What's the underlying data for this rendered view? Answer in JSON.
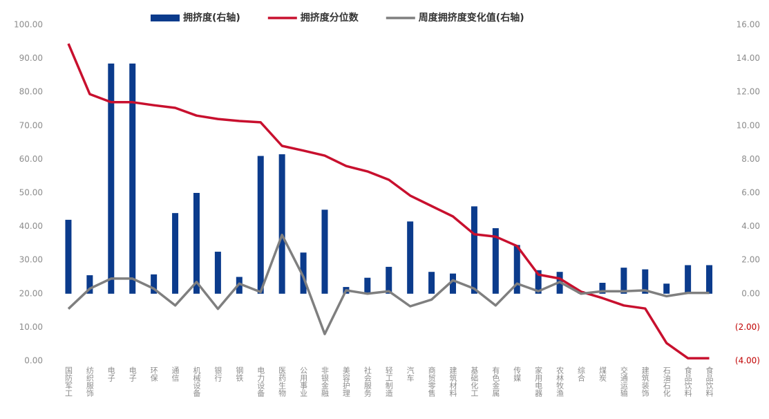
{
  "chart_data": {
    "type": "bar-line",
    "categories": [
      "国防军工",
      "纺织服饰",
      "电子",
      "电子",
      "环保",
      "通信",
      "机械设备",
      "银行",
      "钢铁",
      "电力设备",
      "医药生物",
      "公用事业",
      "非银金融",
      "美容护理",
      "社会服务",
      "轻工制造",
      "汽车",
      "商贸零售",
      "建筑材料",
      "基础化工",
      "有色金属",
      "传媒",
      "家用电器",
      "农林牧渔",
      "综合",
      "煤炭",
      "交通运输",
      "建筑装饰",
      "石油石化",
      "食品饮料",
      "食品饮料"
    ],
    "series": [
      {
        "name": "拥挤度(右轴)",
        "type": "bar",
        "axis": "y2",
        "color": "#0b3b8c",
        "values": [
          4.4,
          1.1,
          13.7,
          13.7,
          1.15,
          4.8,
          6.0,
          2.5,
          1.0,
          8.2,
          8.3,
          2.45,
          5.0,
          0.4,
          0.95,
          1.6,
          4.3,
          1.3,
          1.2,
          5.2,
          3.9,
          2.9,
          1.4,
          1.3,
          0.15,
          0.65,
          1.55,
          1.45,
          0.6,
          1.7,
          1.7
        ]
      },
      {
        "name": "拥挤度分位数",
        "type": "line",
        "color": "#c8102e",
        "values": [
          94.4,
          79.4,
          77.0,
          77.0,
          76.1,
          75.3,
          73.0,
          72.0,
          71.4,
          71.0,
          64.0,
          62.6,
          61.1,
          58.0,
          56.4,
          53.9,
          49.2,
          46.1,
          43.0,
          37.7,
          37.0,
          34.2,
          25.7,
          24.5,
          20.6,
          18.7,
          16.5,
          15.6,
          5.3,
          0.8,
          0.8
        ]
      },
      {
        "name": "周度拥挤度变化值(右轴)",
        "type": "line",
        "axis": "y2",
        "color": "#7f7f7f",
        "values": [
          -0.9,
          0.3,
          0.9,
          0.9,
          0.3,
          -0.7,
          0.7,
          -0.9,
          0.6,
          0.1,
          3.5,
          1.0,
          -2.4,
          0.2,
          0.0,
          0.15,
          -0.75,
          -0.35,
          0.8,
          0.3,
          -0.7,
          0.6,
          0.15,
          0.7,
          0.0,
          0.15,
          0.15,
          0.2,
          -0.15,
          0.05,
          0.05
        ]
      }
    ],
    "ylim": [
      0,
      100
    ],
    "yticks": [
      {
        "value": 0,
        "label": "0.00"
      },
      {
        "value": 10,
        "label": "10.00"
      },
      {
        "value": 20,
        "label": "20.00"
      },
      {
        "value": 30,
        "label": "30.00"
      },
      {
        "value": 40,
        "label": "40.00"
      },
      {
        "value": 50,
        "label": "50.00"
      },
      {
        "value": 60,
        "label": "60.00"
      },
      {
        "value": 70,
        "label": "70.00"
      },
      {
        "value": 80,
        "label": "80.00"
      },
      {
        "value": 90,
        "label": "90.00"
      },
      {
        "value": 100,
        "label": "100.00"
      }
    ],
    "y2lim": [
      -4,
      16
    ],
    "y2ticks": [
      {
        "value": -4,
        "label": "(4.00)"
      },
      {
        "value": -2,
        "label": "(2.00)"
      },
      {
        "value": 0,
        "label": "0.00"
      },
      {
        "value": 2,
        "label": "2.00"
      },
      {
        "value": 4,
        "label": "4.00"
      },
      {
        "value": 6,
        "label": "6.00"
      },
      {
        "value": 8,
        "label": "8.00"
      },
      {
        "value": 10,
        "label": "10.00"
      },
      {
        "value": 12,
        "label": "12.00"
      },
      {
        "value": 14,
        "label": "14.00"
      },
      {
        "value": 16,
        "label": "16.00"
      }
    ],
    "negative_tick_color": "#c00000",
    "grid": false,
    "legend": "top"
  }
}
